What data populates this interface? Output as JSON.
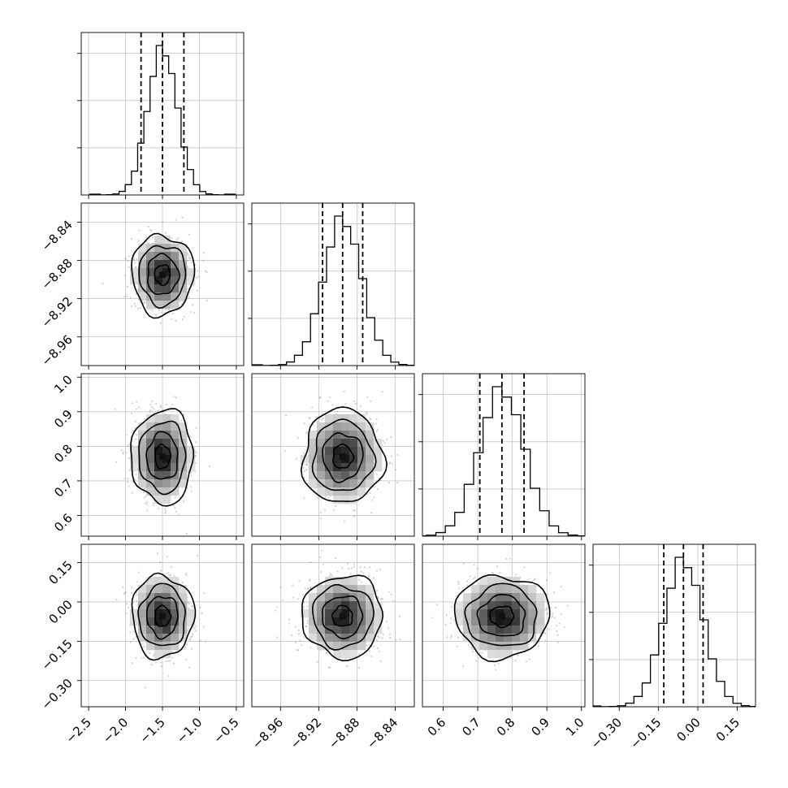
{
  "chart_data": {
    "type": "corner",
    "parameters": [
      {
        "mean": -1.5,
        "sd": 0.2,
        "range": [
          -2.6,
          -0.4
        ],
        "ticks": [
          -2.5,
          -2.0,
          -1.5,
          -1.0,
          -0.5
        ],
        "tick_labels": [
          "−2.5",
          "−2.0",
          "−1.5",
          "−1.0",
          "−0.5"
        ],
        "quantiles": [
          -1.79,
          -1.5,
          -1.21
        ]
      },
      {
        "mean": -8.895,
        "sd": 0.02,
        "range": [
          -8.99,
          -8.82
        ],
        "ticks": [
          -8.96,
          -8.92,
          -8.88,
          -8.84
        ],
        "tick_labels": [
          "−8.96",
          "−8.92",
          "−8.88",
          "−8.84"
        ],
        "quantiles": [
          -8.916,
          -8.895,
          -8.874
        ]
      },
      {
        "mean": 0.77,
        "sd": 0.065,
        "range": [
          0.54,
          1.01
        ],
        "ticks": [
          0.6,
          0.7,
          0.8,
          0.9,
          1.0
        ],
        "tick_labels": [
          "0.6",
          "0.7",
          "0.8",
          "0.9",
          "1.0"
        ],
        "quantiles": [
          0.706,
          0.77,
          0.834
        ]
      },
      {
        "mean": -0.055,
        "sd": 0.075,
        "range": [
          -0.4,
          0.22
        ],
        "ticks": [
          -0.3,
          -0.15,
          0.0,
          0.15
        ],
        "tick_labels": [
          "−0.30",
          "−0.15",
          "0.00",
          "0.15"
        ],
        "quantiles": [
          -0.13,
          -0.055,
          0.02
        ]
      }
    ],
    "hist_bins": 20,
    "contour_levels_sigma": [
      0.5,
      1.0,
      1.5,
      2.0
    ],
    "scatter_points_per_panel": 700,
    "grid": true,
    "colors": {
      "line": "#000000",
      "points": "#9a9a9a",
      "grid": "#b0b0b0"
    }
  }
}
